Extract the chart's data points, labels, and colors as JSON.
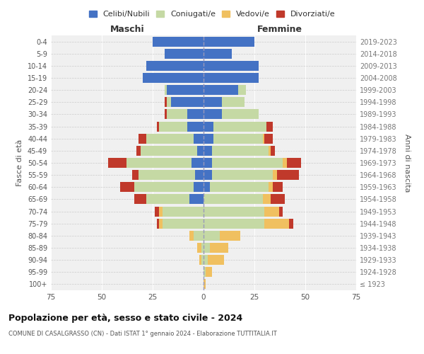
{
  "age_groups": [
    "100+",
    "95-99",
    "90-94",
    "85-89",
    "80-84",
    "75-79",
    "70-74",
    "65-69",
    "60-64",
    "55-59",
    "50-54",
    "45-49",
    "40-44",
    "35-39",
    "30-34",
    "25-29",
    "20-24",
    "15-19",
    "10-14",
    "5-9",
    "0-4"
  ],
  "birth_years": [
    "≤ 1923",
    "1924-1928",
    "1929-1933",
    "1934-1938",
    "1939-1943",
    "1944-1948",
    "1949-1953",
    "1954-1958",
    "1959-1963",
    "1964-1968",
    "1969-1973",
    "1974-1978",
    "1979-1983",
    "1984-1988",
    "1989-1993",
    "1994-1998",
    "1999-2003",
    "2004-2008",
    "2009-2013",
    "2014-2018",
    "2019-2023"
  ],
  "maschi": {
    "celibi": [
      0,
      0,
      0,
      0,
      0,
      0,
      0,
      7,
      5,
      4,
      6,
      3,
      5,
      8,
      8,
      16,
      18,
      30,
      28,
      19,
      25
    ],
    "coniugati": [
      0,
      0,
      1,
      1,
      5,
      20,
      20,
      21,
      29,
      28,
      32,
      28,
      23,
      14,
      10,
      2,
      1,
      0,
      0,
      0,
      0
    ],
    "vedovi": [
      0,
      0,
      1,
      2,
      2,
      2,
      2,
      0,
      0,
      0,
      0,
      0,
      0,
      0,
      0,
      0,
      0,
      0,
      0,
      0,
      0
    ],
    "divorziati": [
      0,
      0,
      0,
      0,
      0,
      1,
      2,
      6,
      7,
      3,
      9,
      2,
      4,
      1,
      1,
      1,
      0,
      0,
      0,
      0,
      0
    ]
  },
  "femmine": {
    "nubili": [
      0,
      0,
      0,
      0,
      0,
      0,
      0,
      0,
      3,
      4,
      4,
      4,
      5,
      5,
      9,
      9,
      17,
      27,
      27,
      14,
      25
    ],
    "coniugate": [
      0,
      1,
      2,
      3,
      8,
      30,
      30,
      29,
      29,
      30,
      35,
      28,
      24,
      26,
      18,
      11,
      4,
      0,
      0,
      0,
      0
    ],
    "vedove": [
      1,
      3,
      8,
      9,
      10,
      12,
      7,
      4,
      2,
      2,
      2,
      1,
      1,
      0,
      0,
      0,
      0,
      0,
      0,
      0,
      0
    ],
    "divorziate": [
      0,
      0,
      0,
      0,
      0,
      2,
      2,
      7,
      5,
      11,
      7,
      2,
      4,
      3,
      0,
      0,
      0,
      0,
      0,
      0,
      0
    ]
  },
  "colors": {
    "celibi": "#4472c4",
    "coniugati": "#c5d9a4",
    "vedovi": "#f0c060",
    "divorziati": "#c0392b"
  },
  "xlim": 75,
  "title": "Popolazione per età, sesso e stato civile - 2024",
  "subtitle": "COMUNE DI CASALGRASSO (CN) - Dati ISTAT 1° gennaio 2024 - Elaborazione TUTTITALIA.IT",
  "ylabel_left": "Fasce di età",
  "ylabel_right": "Anni di nascita",
  "xlabel_left": "Maschi",
  "xlabel_right": "Femmine",
  "background_color": "#f0f0f0",
  "legend_labels": [
    "Celibi/Nubili",
    "Coniugati/e",
    "Vedovi/e",
    "Divorziati/e"
  ]
}
